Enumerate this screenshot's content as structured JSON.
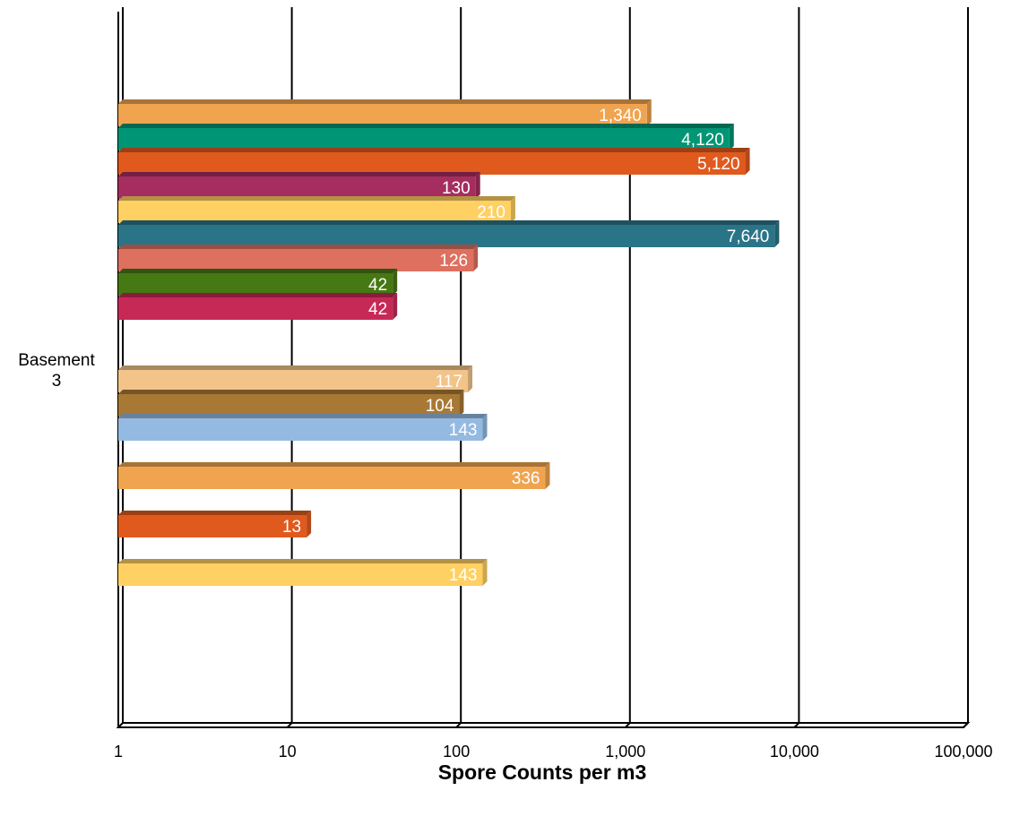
{
  "chart_data": {
    "type": "bar",
    "orientation": "horizontal",
    "xscale": "log",
    "xlim": [
      1,
      100000
    ],
    "xticks": [
      1,
      10,
      100,
      1000,
      10000,
      100000
    ],
    "xtick_labels": [
      "1",
      "10",
      "100",
      "1,000",
      "10,000",
      "100,000"
    ],
    "xlabel": "Spore Counts per m3",
    "title": "",
    "category": "Basement 3",
    "grid": true,
    "legend": "none",
    "series": [
      {
        "value": 1340,
        "label": "1,340",
        "color": "#F0A450"
      },
      {
        "value": 4120,
        "label": "4,120",
        "color": "#009675"
      },
      {
        "value": 5120,
        "label": "5,120",
        "color": "#E05A1E"
      },
      {
        "value": 130,
        "label": "130",
        "color": "#A52D5F"
      },
      {
        "value": 210,
        "label": "210",
        "color": "#FFD062"
      },
      {
        "value": 7640,
        "label": "7,640",
        "color": "#2A7488"
      },
      {
        "value": 126,
        "label": "126",
        "color": "#DE7060"
      },
      {
        "value": 42,
        "label": "42",
        "color": "#467814"
      },
      {
        "value": 42,
        "label": "42",
        "color": "#C72956"
      },
      {
        "value": 0,
        "label": "",
        "color": "#ffffff"
      },
      {
        "value": 0,
        "label": "",
        "color": "#ffffff"
      },
      {
        "value": 117,
        "label": "117",
        "color": "#F2C48A"
      },
      {
        "value": 104,
        "label": "104",
        "color": "#A77935"
      },
      {
        "value": 143,
        "label": "143",
        "color": "#94BAE2"
      },
      {
        "value": 0,
        "label": "",
        "color": "#ffffff"
      },
      {
        "value": 336,
        "label": "336",
        "color": "#F0A450"
      },
      {
        "value": 0,
        "label": "",
        "color": "#ffffff"
      },
      {
        "value": 13,
        "label": "13",
        "color": "#E05A1E"
      },
      {
        "value": 0,
        "label": "",
        "color": "#ffffff"
      },
      {
        "value": 143,
        "label": "143",
        "color": "#FFD062"
      }
    ]
  }
}
